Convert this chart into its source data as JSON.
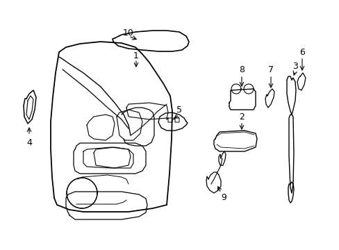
{
  "bg_color": "#ffffff",
  "lc": "#000000",
  "figsize": [
    4.89,
    3.6
  ],
  "dpi": 100
}
